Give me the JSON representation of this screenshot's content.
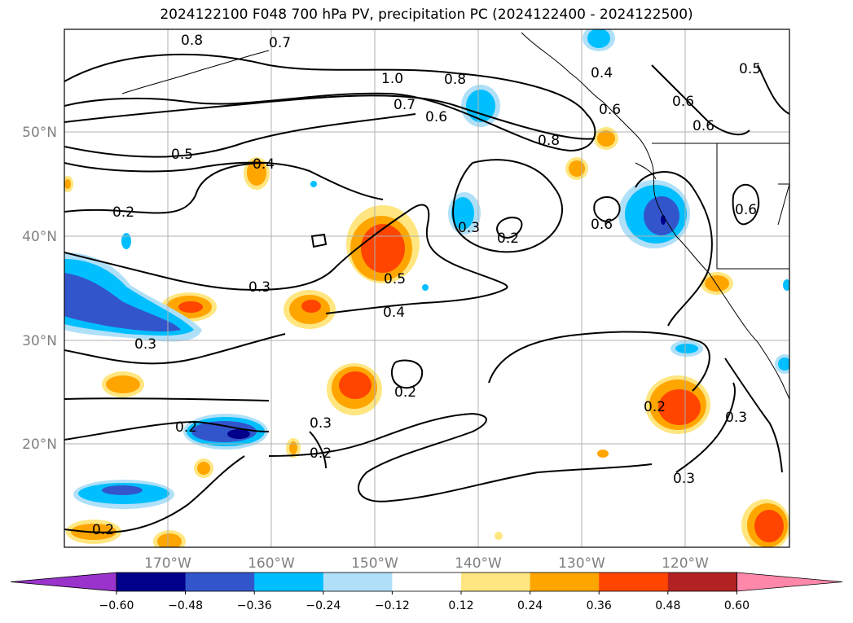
{
  "title": "2024122100 F048 700 hPa PV, precipitation PC (2024122400 - 2024122500)",
  "map": {
    "lon_ticks": [
      "170°W",
      "160°W",
      "150°W",
      "140°W",
      "130°W",
      "120°W"
    ],
    "lat_ticks": [
      "50°N",
      "40°N",
      "30°N",
      "20°N"
    ],
    "contour_labels": [
      "0.8",
      "0.7",
      "1.0",
      "0.8",
      "0.4",
      "0.7",
      "0.6",
      "0.6",
      "0.8",
      "0.5",
      "0.4",
      "0.6",
      "0.5",
      "0.6",
      "0.2",
      "0.3",
      "0.2",
      "0.6",
      "0.6",
      "0.5",
      "0.3",
      "0.4",
      "0.3",
      "0.2",
      "0.2",
      "0.3",
      "0.2",
      "0.2",
      "0.3",
      "0.3",
      "0.2"
    ]
  },
  "colorbar": {
    "ticks": [
      "−0.60",
      "−0.48",
      "−0.36",
      "−0.24",
      "−0.12",
      "0.12",
      "0.24",
      "0.36",
      "0.48",
      "0.60"
    ],
    "colors": [
      "#9933cc",
      "#00008b",
      "#3355cc",
      "#00bfff",
      "#b0e0f8",
      "#ffffff",
      "#ffe680",
      "#ffa500",
      "#ff4500",
      "#b22222",
      "#ff88aa"
    ]
  }
}
